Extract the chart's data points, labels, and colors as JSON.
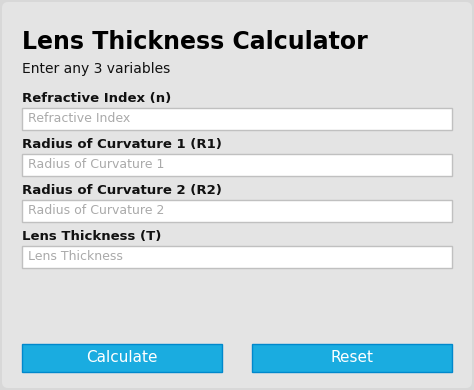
{
  "title": "Lens Thickness Calculator",
  "subtitle": "Enter any 3 variables",
  "bg_color": "#d8d8d8",
  "card_color": "#e4e4e4",
  "field_bg": "#ffffff",
  "field_border": "#c0c0c0",
  "btn_color": "#1aace0",
  "btn_text_color": "#ffffff",
  "title_color": "#000000",
  "label_color": "#111111",
  "placeholder_color": "#aaaaaa",
  "fields": [
    {
      "label": "Refractive Index (n)",
      "placeholder": "Refractive Index"
    },
    {
      "label": "Radius of Curvature 1 (R1)",
      "placeholder": "Radius of Curvature 1"
    },
    {
      "label": "Radius of Curvature 2 (R2)",
      "placeholder": "Radius of Curvature 2"
    },
    {
      "label": "Lens Thickness (T)",
      "placeholder": "Lens Thickness"
    }
  ],
  "buttons": [
    "Calculate",
    "Reset"
  ],
  "label_fontsize": 9.5,
  "placeholder_fontsize": 9,
  "title_fontsize": 17,
  "subtitle_fontsize": 10
}
